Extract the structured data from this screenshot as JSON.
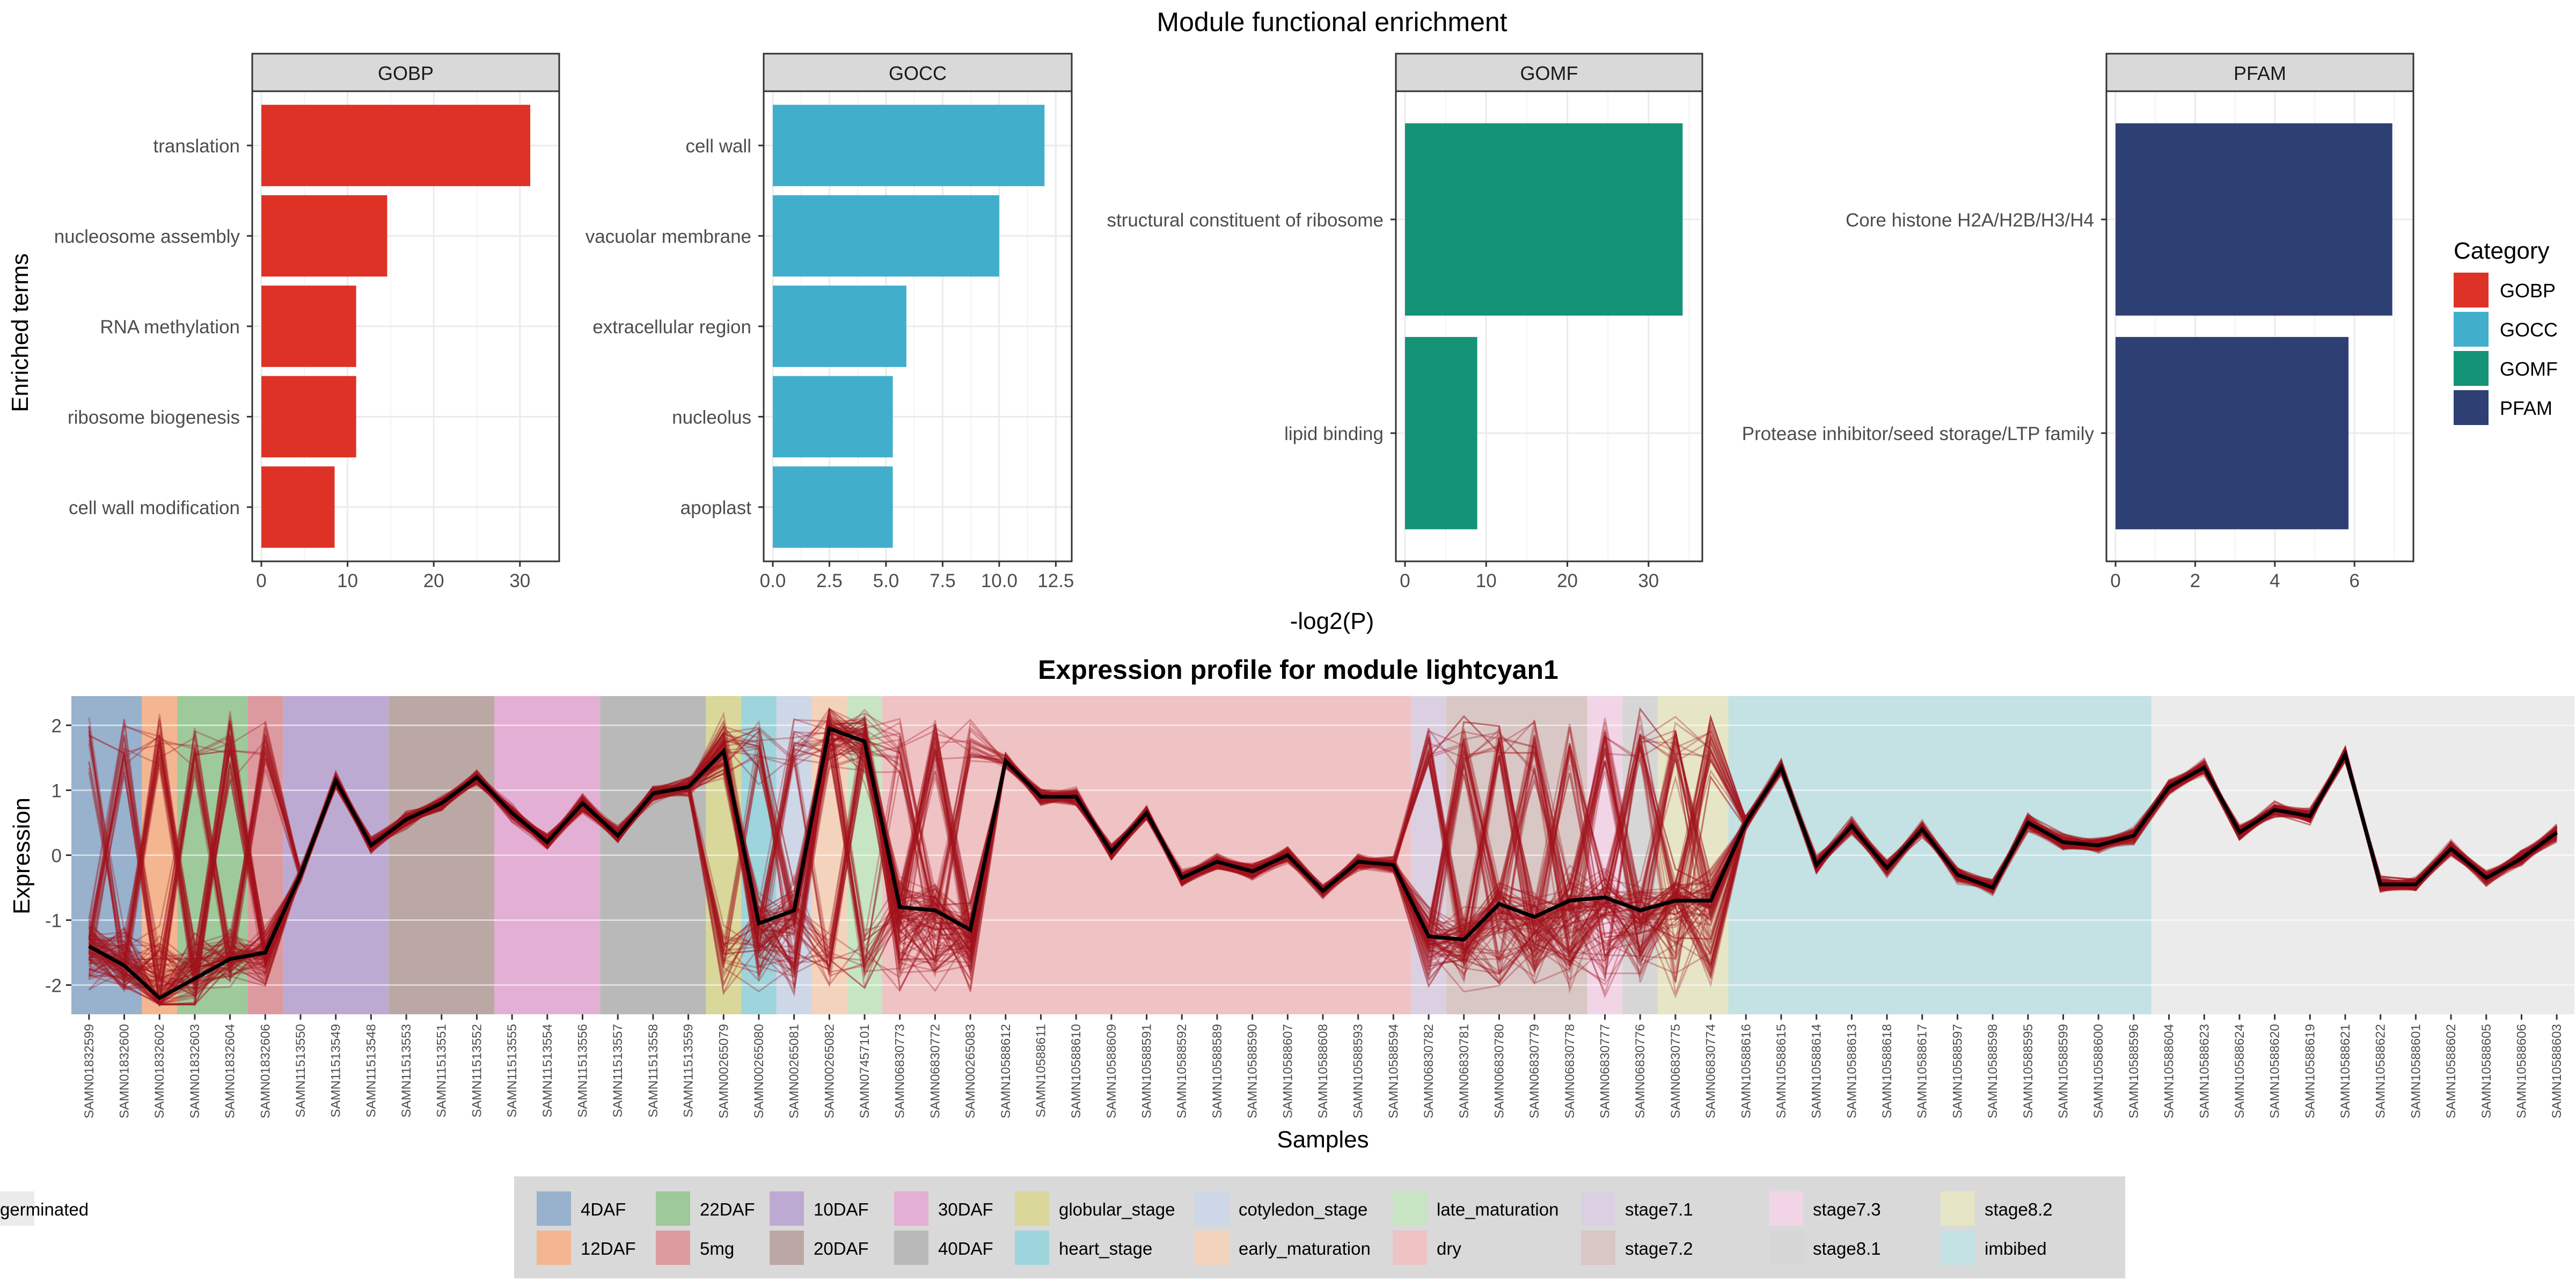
{
  "figure": {
    "top_title": "Module functional enrichment",
    "top_xlabel": "-log2(P)",
    "top_ylabel": "Enriched terms",
    "bottom_title": "Expression profile for module lightcyan1",
    "bottom_xlabel": "Samples",
    "bottom_ylabel": "Expression",
    "legend_title": "Category"
  },
  "chart_data": [
    {
      "type": "bar",
      "orientation": "horizontal",
      "facet": "GOBP",
      "categories": [
        "translation",
        "nucleosome assembly",
        "RNA methylation",
        "ribosome biogenesis",
        "cell wall modification"
      ],
      "values": [
        31.2,
        14.6,
        11.0,
        11.0,
        8.5
      ],
      "xlim": [
        0,
        33.5
      ],
      "xticks": [
        0,
        10,
        20,
        30
      ],
      "xtick_labels": [
        "0",
        "10",
        "20",
        "30"
      ],
      "color": "#de3227"
    },
    {
      "type": "bar",
      "orientation": "horizontal",
      "facet": "GOCC",
      "categories": [
        "cell wall",
        "vacuolar membrane",
        "extracellular region",
        "nucleolus",
        "apoplast"
      ],
      "values": [
        12.0,
        10.0,
        5.9,
        5.3,
        5.3
      ],
      "xlim": [
        0,
        12.8
      ],
      "xticks": [
        0,
        2.5,
        5,
        7.5,
        10,
        12.5
      ],
      "xtick_labels": [
        "0.0",
        "2.5",
        "5.0",
        "7.5",
        "10.0",
        "12.5"
      ],
      "color": "#41aecc"
    },
    {
      "type": "bar",
      "orientation": "horizontal",
      "facet": "GOMF",
      "categories": [
        "structural constituent of ribosome",
        "lipid binding"
      ],
      "values": [
        34.2,
        8.9
      ],
      "xlim": [
        0,
        35.5
      ],
      "xticks": [
        0,
        10,
        20,
        30
      ],
      "xtick_labels": [
        "0",
        "10",
        "20",
        "30"
      ],
      "color": "#159377"
    },
    {
      "type": "bar",
      "orientation": "horizontal",
      "facet": "PFAM",
      "categories": [
        "Core histone H2A/H2B/H3/H4",
        "Protease inhibitor/seed storage/LTP family"
      ],
      "values": [
        6.95,
        5.85
      ],
      "xlim": [
        0,
        7.25
      ],
      "xticks": [
        0,
        2,
        4,
        6
      ],
      "xtick_labels": [
        "0",
        "2",
        "4",
        "6"
      ],
      "color": "#2e3f74"
    },
    {
      "type": "line",
      "facet": "lightcyan1",
      "x": [
        "SAMN01832599",
        "SAMN01832600",
        "SAMN01832602",
        "SAMN01832603",
        "SAMN01832604",
        "SAMN01832606",
        "SAMN11513550",
        "SAMN11513549",
        "SAMN11513548",
        "SAMN11513553",
        "SAMN11513551",
        "SAMN11513552",
        "SAMN11513555",
        "SAMN11513554",
        "SAMN11513556",
        "SAMN11513557",
        "SAMN11513558",
        "SAMN11513559",
        "SAMN00265079",
        "SAMN00265080",
        "SAMN00265081",
        "SAMN00265082",
        "SAMN07457101",
        "SAMN06830773",
        "SAMN06830772",
        "SAMN00265083",
        "SAMN10588612",
        "SAMN10588611",
        "SAMN10588610",
        "SAMN10588609",
        "SAMN10588591",
        "SAMN10588592",
        "SAMN10588589",
        "SAMN10588590",
        "SAMN10588607",
        "SAMN10588608",
        "SAMN10588593",
        "SAMN10588594",
        "SAMN06830782",
        "SAMN06830781",
        "SAMN06830780",
        "SAMN06830779",
        "SAMN06830778",
        "SAMN06830777",
        "SAMN06830776",
        "SAMN06830775",
        "SAMN06830774",
        "SAMN10588616",
        "SAMN10588615",
        "SAMN10588614",
        "SAMN10588613",
        "SAMN10588618",
        "SAMN10588617",
        "SAMN10588597",
        "SAMN10588598",
        "SAMN10588595",
        "SAMN10588599",
        "SAMN10588600",
        "SAMN10588596",
        "SAMN10588604",
        "SAMN10588623",
        "SAMN10588624",
        "SAMN10588620",
        "SAMN10588619",
        "SAMN10588621",
        "SAMN10588622",
        "SAMN10588601",
        "SAMN10588602",
        "SAMN10588605",
        "SAMN10588606",
        "SAMN10588603"
      ],
      "series": [
        {
          "role": "module eigengene (black line)",
          "color": "#000000",
          "values": [
            -1.4,
            -1.7,
            -2.2,
            -1.9,
            -1.6,
            -1.5,
            -0.3,
            1.15,
            0.15,
            0.55,
            0.8,
            1.2,
            0.65,
            0.2,
            0.8,
            0.3,
            0.95,
            1.05,
            1.6,
            -1.05,
            -0.85,
            1.95,
            1.75,
            -0.8,
            -0.85,
            -1.15,
            1.45,
            0.9,
            0.9,
            0.05,
            0.65,
            -0.35,
            -0.1,
            -0.25,
            0.0,
            -0.55,
            -0.1,
            -0.15,
            -1.25,
            -1.3,
            -0.75,
            -0.95,
            -0.7,
            -0.65,
            -0.85,
            -0.7,
            -0.7,
            0.5,
            1.35,
            -0.15,
            0.45,
            -0.2,
            0.4,
            -0.3,
            -0.5,
            0.5,
            0.2,
            0.15,
            0.3,
            1.05,
            1.35,
            0.35,
            0.7,
            0.6,
            1.55,
            -0.45,
            -0.45,
            0.1,
            -0.35,
            -0.05,
            0.35
          ]
        }
      ],
      "member_gene_color": "#a3121d",
      "ylim": [
        -2.45,
        2.45
      ],
      "yticks": [
        -2,
        -1,
        0,
        1,
        2
      ],
      "ytick_labels": [
        "-2",
        "-1",
        "0",
        "1",
        "2"
      ],
      "stage_bands": [
        {
          "stage": "4DAF",
          "from": 0,
          "to": 1
        },
        {
          "stage": "12DAF",
          "from": 2,
          "to": 2
        },
        {
          "stage": "22DAF",
          "from": 3,
          "to": 4
        },
        {
          "stage": "5mg",
          "from": 5,
          "to": 5
        },
        {
          "stage": "10DAF",
          "from": 6,
          "to": 8
        },
        {
          "stage": "20DAF",
          "from": 9,
          "to": 11
        },
        {
          "stage": "30DAF",
          "from": 12,
          "to": 14
        },
        {
          "stage": "40DAF",
          "from": 15,
          "to": 17
        },
        {
          "stage": "globular_stage",
          "from": 18,
          "to": 18
        },
        {
          "stage": "heart_stage",
          "from": 19,
          "to": 19
        },
        {
          "stage": "cotyledon_stage",
          "from": 20,
          "to": 20
        },
        {
          "stage": "early_maturation",
          "from": 21,
          "to": 21
        },
        {
          "stage": "late_maturation",
          "from": 22,
          "to": 22
        },
        {
          "stage": "dry",
          "from": 23,
          "to": 37
        },
        {
          "stage": "stage7.1",
          "from": 38,
          "to": 38
        },
        {
          "stage": "stage7.2",
          "from": 39,
          "to": 42
        },
        {
          "stage": "stage7.3",
          "from": 43,
          "to": 43
        },
        {
          "stage": "stage8.1",
          "from": 44,
          "to": 44
        },
        {
          "stage": "stage8.2",
          "from": 45,
          "to": 46
        },
        {
          "stage": "imbibed",
          "from": 47,
          "to": 58
        },
        {
          "stage": "germinated",
          "from": 59,
          "to": 70
        }
      ]
    }
  ],
  "category_legend": [
    {
      "label": "GOBP",
      "color": "#de3227"
    },
    {
      "label": "GOCC",
      "color": "#41aecc"
    },
    {
      "label": "GOMF",
      "color": "#159377"
    },
    {
      "label": "PFAM",
      "color": "#2e3f74"
    }
  ],
  "stage_legend": [
    {
      "label": "4DAF",
      "color": "#98b1cd"
    },
    {
      "label": "12DAF",
      "color": "#f3b690"
    },
    {
      "label": "22DAF",
      "color": "#9ec99b"
    },
    {
      "label": "5mg",
      "color": "#dd9a9e"
    },
    {
      "label": "10DAF",
      "color": "#bdaad3"
    },
    {
      "label": "20DAF",
      "color": "#bba8a4"
    },
    {
      "label": "30DAF",
      "color": "#e3afd5"
    },
    {
      "label": "40DAF",
      "color": "#b9b9b9"
    },
    {
      "label": "globular_stage",
      "color": "#d9d79a"
    },
    {
      "label": "heart_stage",
      "color": "#9ed4dc"
    },
    {
      "label": "cotyledon_stage",
      "color": "#ced7e7"
    },
    {
      "label": "early_maturation",
      "color": "#f4d3bc"
    },
    {
      "label": "late_maturation",
      "color": "#c7e4c3"
    },
    {
      "label": "dry",
      "color": "#efc2c4"
    },
    {
      "label": "stage7.1",
      "color": "#dbd0e2"
    },
    {
      "label": "stage7.2",
      "color": "#d8c7c5"
    },
    {
      "label": "stage7.3",
      "color": "#f1d5e7"
    },
    {
      "label": "stage8.1",
      "color": "#d6d6d6"
    },
    {
      "label": "stage8.2",
      "color": "#e6e5c5"
    },
    {
      "label": "imbibed",
      "color": "#c4e1e4"
    },
    {
      "label": "germinated",
      "color": "#ebebeb"
    }
  ]
}
